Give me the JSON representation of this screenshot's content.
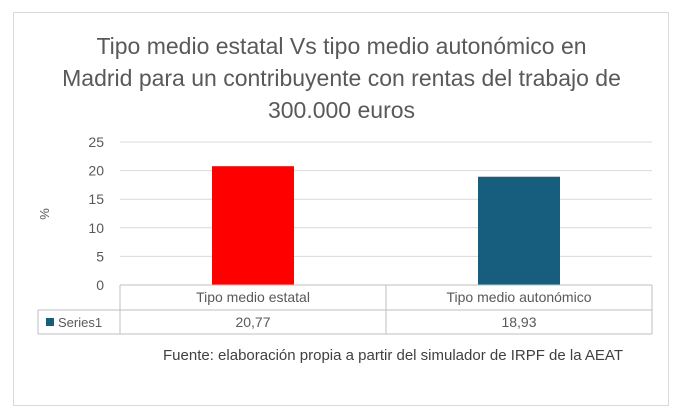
{
  "chart_data": {
    "type": "bar",
    "title": "Tipo medio estatal Vs tipo medio autonómico en Madrid para un contribuyente con rentas del trabajo de 300.000 euros",
    "ylabel": "%",
    "xlabel": "",
    "ylim": [
      0,
      25
    ],
    "y_ticks": [
      "0",
      "5",
      "10",
      "15",
      "20",
      "25"
    ],
    "grid": true,
    "categories": [
      "Tipo medio estatal",
      "Tipo medio autonómico"
    ],
    "series": [
      {
        "name": "Series1",
        "values": [
          20.77,
          18.93
        ],
        "value_labels": [
          "20,77",
          "18,93"
        ],
        "point_colors": [
          "#ff0000",
          "#175e7e"
        ]
      }
    ],
    "legend_color": "#175e7e",
    "data_table": true,
    "source": "Fuente: elaboración propia a partir del simulador de IRPF de la AEAT"
  }
}
